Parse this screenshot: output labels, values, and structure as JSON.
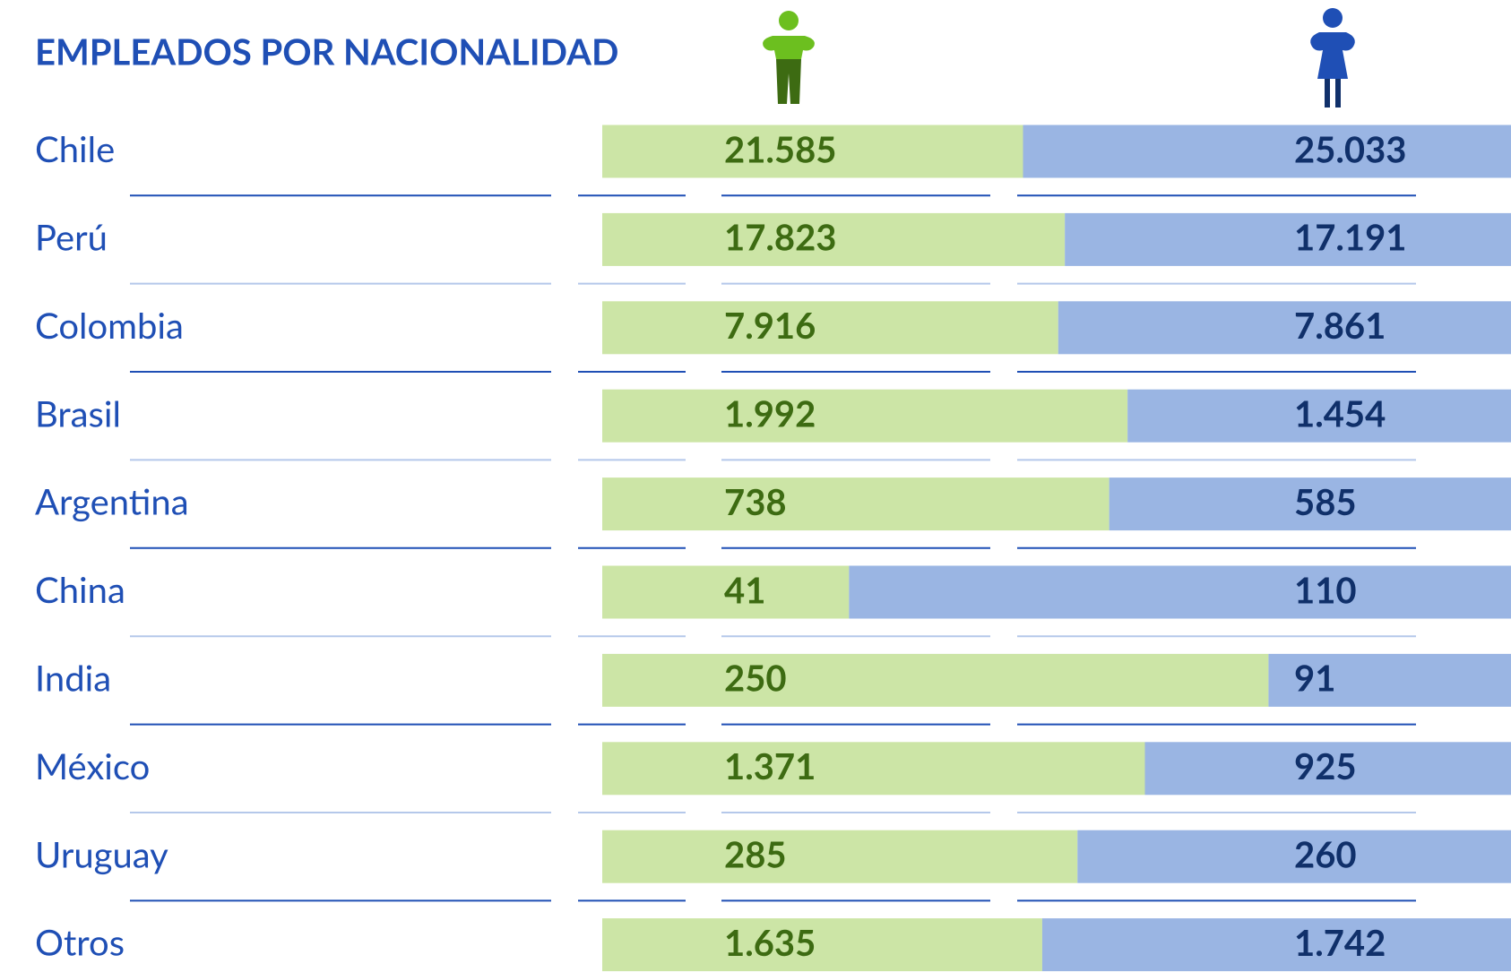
{
  "chart_data": {
    "type": "bar",
    "orientation": "horizontal",
    "stacked": "percent",
    "title": "EMPLEADOS POR NACIONALIDAD",
    "categories": [
      "Chile",
      "Perú",
      "Colombia",
      "Brasil",
      "Argentina",
      "China",
      "India",
      "México",
      "Uruguay",
      "Otros"
    ],
    "series": [
      {
        "color": "#cce5a6",
        "label_color": "#3d6b12",
        "values": [
          21585,
          17823,
          7916,
          1992,
          738,
          41,
          250,
          1371,
          285,
          1635
        ],
        "value_labels": [
          "21.585",
          "17.823",
          "7.916",
          "1.992",
          "738",
          "41",
          "250",
          "1.371",
          "285",
          "1.635"
        ]
      },
      {
        "color": "#9ab5e3",
        "label_color": "#10306a",
        "values": [
          25033,
          17191,
          7861,
          1454,
          585,
          110,
          91,
          925,
          260,
          1742
        ],
        "value_labels": [
          "25.033",
          "17.191",
          "7.861",
          "1.454",
          "585",
          "110",
          "91",
          "925",
          "260",
          "1.742"
        ]
      }
    ]
  }
}
